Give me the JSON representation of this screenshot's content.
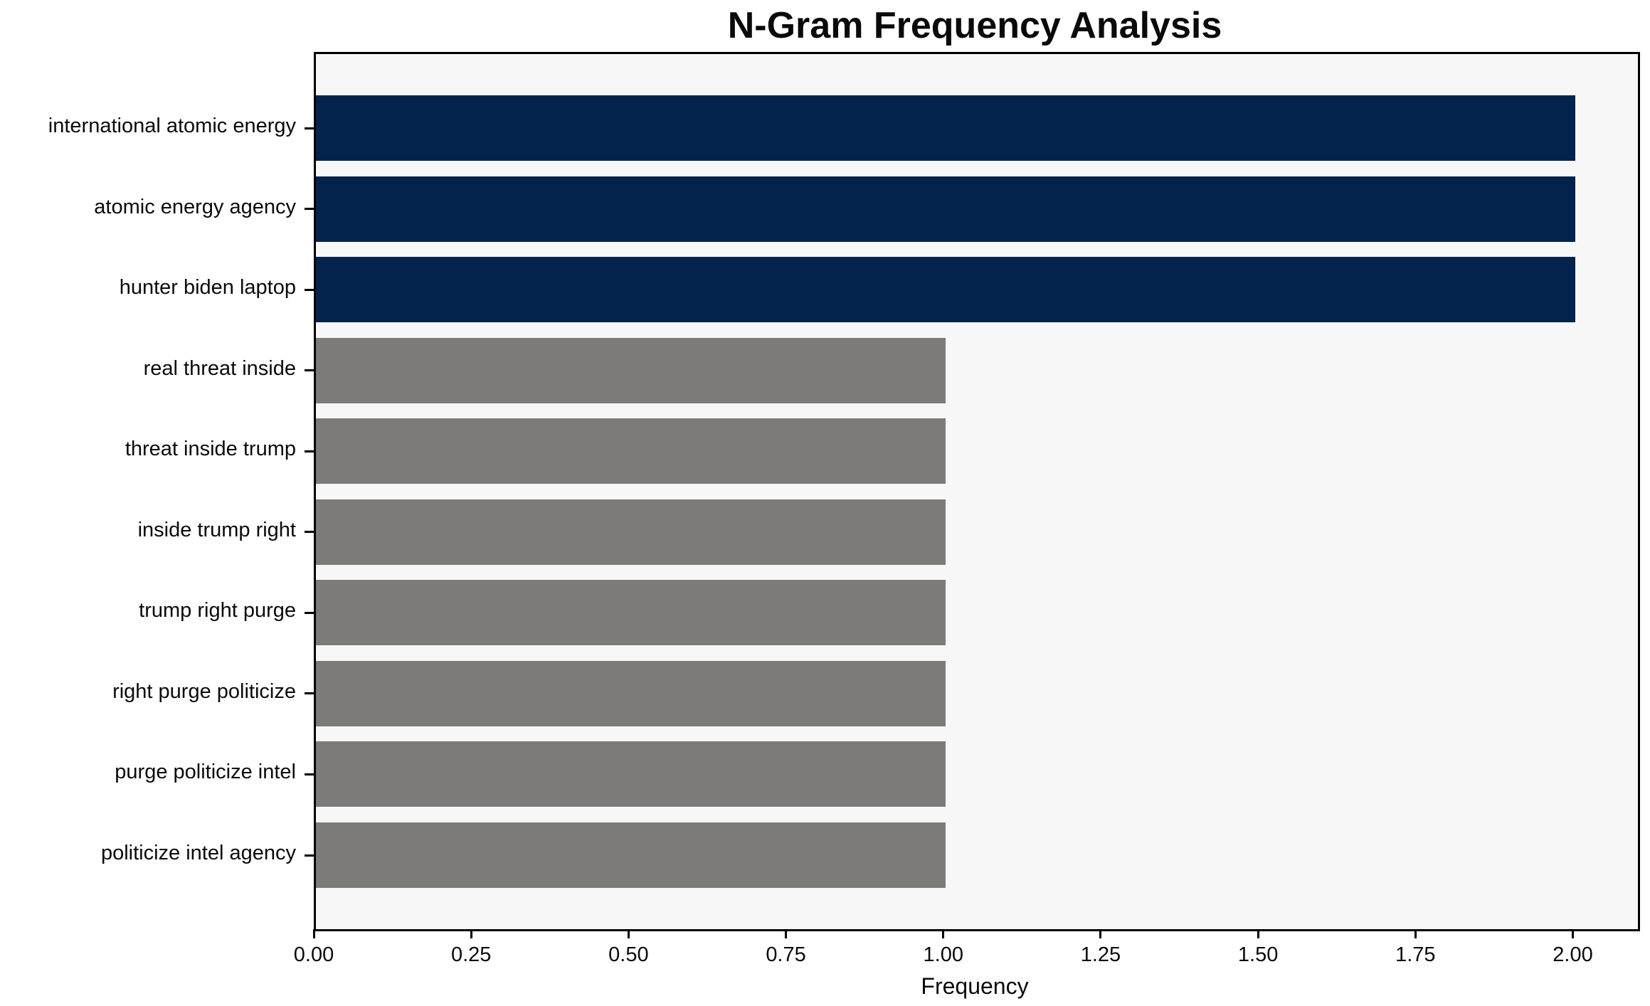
{
  "chart_data": {
    "type": "bar",
    "orientation": "horizontal",
    "title": "N-Gram Frequency Analysis",
    "xlabel": "Frequency",
    "ylabel": "",
    "categories": [
      "international atomic energy",
      "atomic energy agency",
      "hunter biden laptop",
      "real threat inside",
      "threat inside trump",
      "inside trump right",
      "trump right purge",
      "right purge politicize",
      "purge politicize intel",
      "politicize intel agency"
    ],
    "values": [
      2,
      2,
      2,
      1,
      1,
      1,
      1,
      1,
      1,
      1
    ],
    "bar_colors": [
      "#03234c",
      "#03234c",
      "#03234c",
      "#7c7b77",
      "#7c7b77",
      "#7c7b77",
      "#7c7b77",
      "#7c7b77",
      "#7c7b77",
      "#7c7b77"
    ],
    "highlight_color": "#03234c",
    "base_color": "#7c7b77",
    "plot_background": "#f7f7f7",
    "figure_background": "#ffffff",
    "spine_color": "#000000",
    "x_ticks": [
      0.0,
      0.25,
      0.5,
      0.75,
      1.0,
      1.25,
      1.5,
      1.75,
      2.0
    ],
    "x_tick_labels": [
      "0.00",
      "0.25",
      "0.50",
      "0.75",
      "1.00",
      "1.25",
      "1.50",
      "1.75",
      "2.00"
    ],
    "xlim": [
      0,
      2.1
    ],
    "grid": false,
    "legend": null
  }
}
